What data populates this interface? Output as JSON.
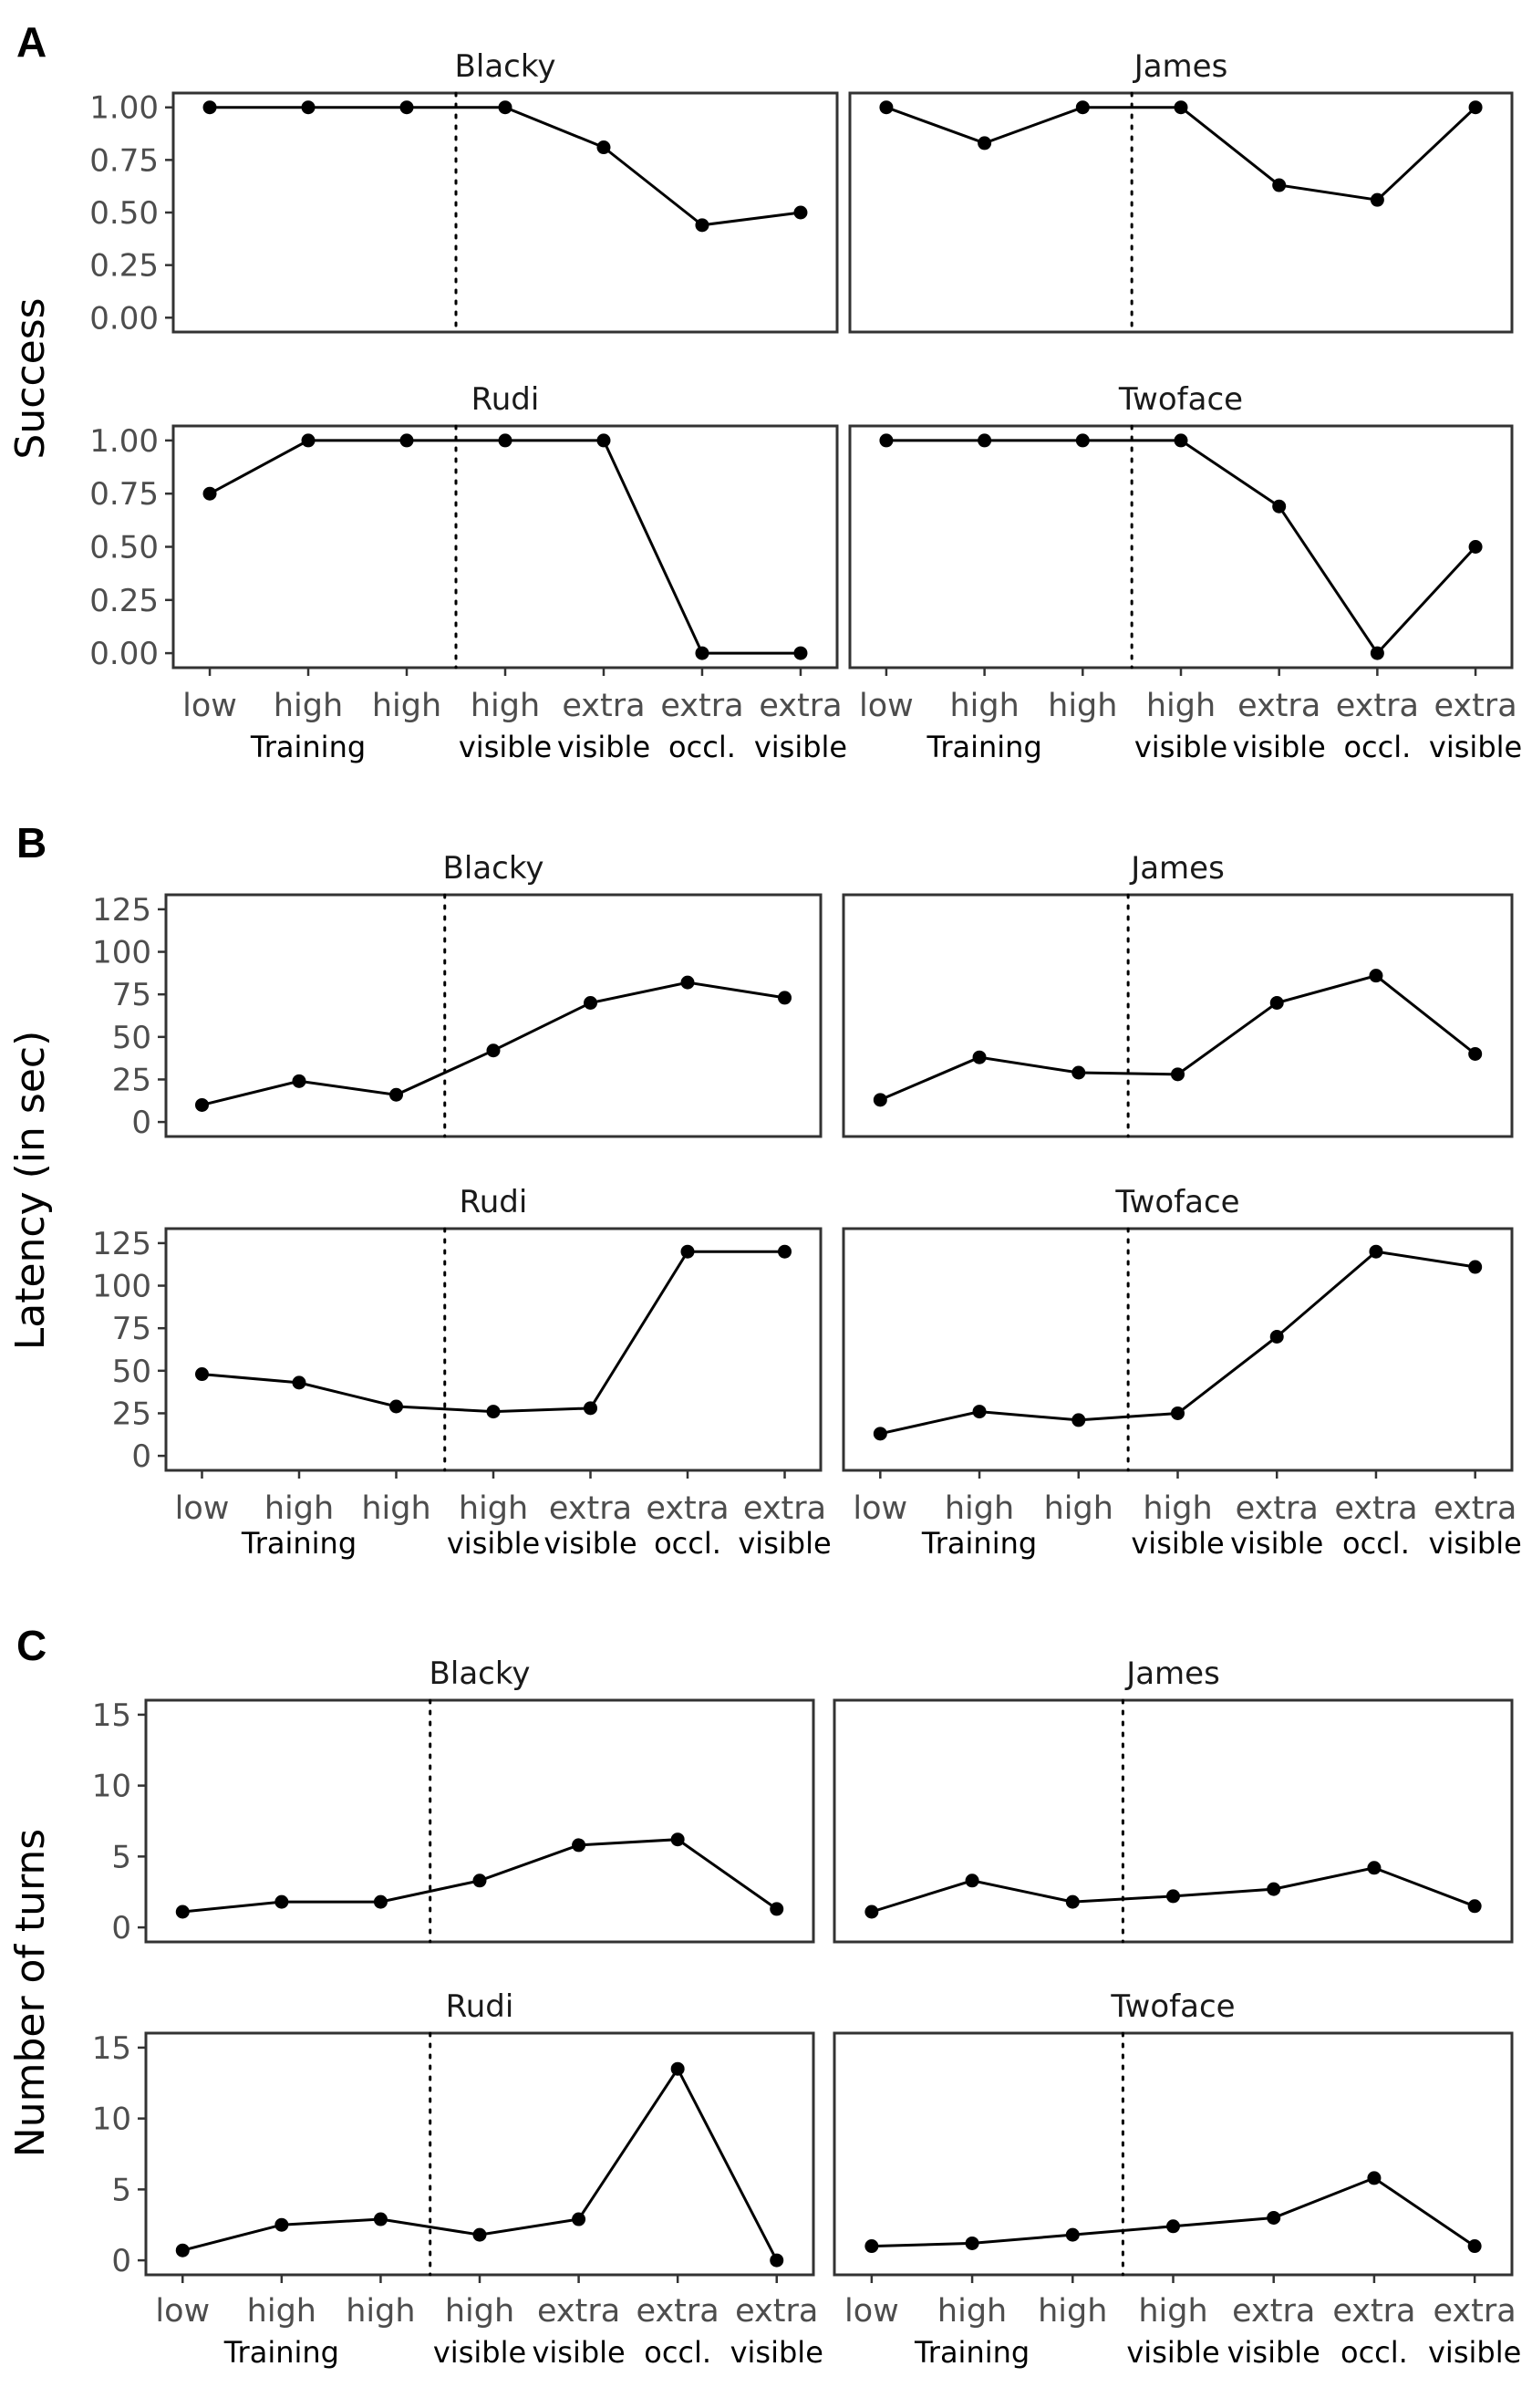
{
  "chart_data": [
    {
      "panel": "A",
      "type": "line",
      "ylabel": "Success",
      "ylim": [
        0,
        1
      ],
      "yticks": [
        0,
        0.25,
        0.5,
        0.75,
        1
      ],
      "ytick_labels": [
        "0.00",
        "0.25",
        "0.50",
        "0.75",
        "1.00"
      ],
      "categories": [
        {
          "top": "low",
          "bottom": ""
        },
        {
          "top": "high",
          "bottom": "Training"
        },
        {
          "top": "high",
          "bottom": ""
        },
        {
          "top": "high",
          "bottom": "visible"
        },
        {
          "top": "extra",
          "bottom": "visible"
        },
        {
          "top": "extra",
          "bottom": "occl."
        },
        {
          "top": "extra",
          "bottom": "visible"
        }
      ],
      "grid": false,
      "divider_after_index": 2,
      "series": [
        {
          "name": "Blacky",
          "values": [
            1.0,
            1.0,
            1.0,
            1.0,
            0.81,
            0.44,
            0.5
          ]
        },
        {
          "name": "James",
          "values": [
            1.0,
            0.83,
            1.0,
            1.0,
            0.63,
            0.56,
            1.0
          ]
        },
        {
          "name": "Rudi",
          "values": [
            0.75,
            1.0,
            1.0,
            1.0,
            1.0,
            0.0,
            0.0
          ]
        },
        {
          "name": "Twoface",
          "values": [
            1.0,
            1.0,
            1.0,
            1.0,
            0.69,
            0.0,
            0.5
          ]
        }
      ]
    },
    {
      "panel": "B",
      "type": "line",
      "ylabel": "Latency (in sec)",
      "ylim": [
        0,
        125
      ],
      "yticks": [
        0,
        25,
        50,
        75,
        100,
        125
      ],
      "ytick_labels": [
        "0",
        "25",
        "50",
        "75",
        "100",
        "125"
      ],
      "categories": [
        {
          "top": "low",
          "bottom": ""
        },
        {
          "top": "high",
          "bottom": "Training"
        },
        {
          "top": "high",
          "bottom": ""
        },
        {
          "top": "high",
          "bottom": "visible"
        },
        {
          "top": "extra",
          "bottom": "visible"
        },
        {
          "top": "extra",
          "bottom": "occl."
        },
        {
          "top": "extra",
          "bottom": "visible"
        }
      ],
      "grid": false,
      "divider_after_index": 2,
      "series": [
        {
          "name": "Blacky",
          "values": [
            10,
            24,
            16,
            42,
            70,
            82,
            73
          ]
        },
        {
          "name": "James",
          "values": [
            13,
            38,
            29,
            28,
            70,
            86,
            40
          ]
        },
        {
          "name": "Rudi",
          "values": [
            48,
            43,
            29,
            26,
            28,
            120,
            120
          ]
        },
        {
          "name": "Twoface",
          "values": [
            13,
            26,
            21,
            25,
            70,
            120,
            111
          ]
        }
      ]
    },
    {
      "panel": "C",
      "type": "line",
      "ylabel": "Number of turns",
      "ylim": [
        0,
        15
      ],
      "yticks": [
        0,
        5,
        10,
        15
      ],
      "ytick_labels": [
        "0",
        "5",
        "10",
        "15"
      ],
      "categories": [
        {
          "top": "low",
          "bottom": ""
        },
        {
          "top": "high",
          "bottom": "Training"
        },
        {
          "top": "high",
          "bottom": ""
        },
        {
          "top": "high",
          "bottom": "visible"
        },
        {
          "top": "extra",
          "bottom": "visible"
        },
        {
          "top": "extra",
          "bottom": "occl."
        },
        {
          "top": "extra",
          "bottom": "visible"
        }
      ],
      "grid": false,
      "divider_after_index": 2,
      "series": [
        {
          "name": "Blacky",
          "values": [
            1.1,
            1.8,
            1.8,
            3.3,
            5.8,
            6.2,
            1.3
          ]
        },
        {
          "name": "James",
          "values": [
            1.1,
            3.3,
            1.8,
            2.2,
            2.7,
            4.2,
            1.5
          ]
        },
        {
          "name": "Rudi",
          "values": [
            0.7,
            2.5,
            2.9,
            1.8,
            2.9,
            13.5,
            0.0
          ]
        },
        {
          "name": "Twoface",
          "values": [
            1.0,
            1.2,
            1.8,
            2.4,
            3.0,
            5.8,
            1.0
          ]
        }
      ]
    }
  ]
}
